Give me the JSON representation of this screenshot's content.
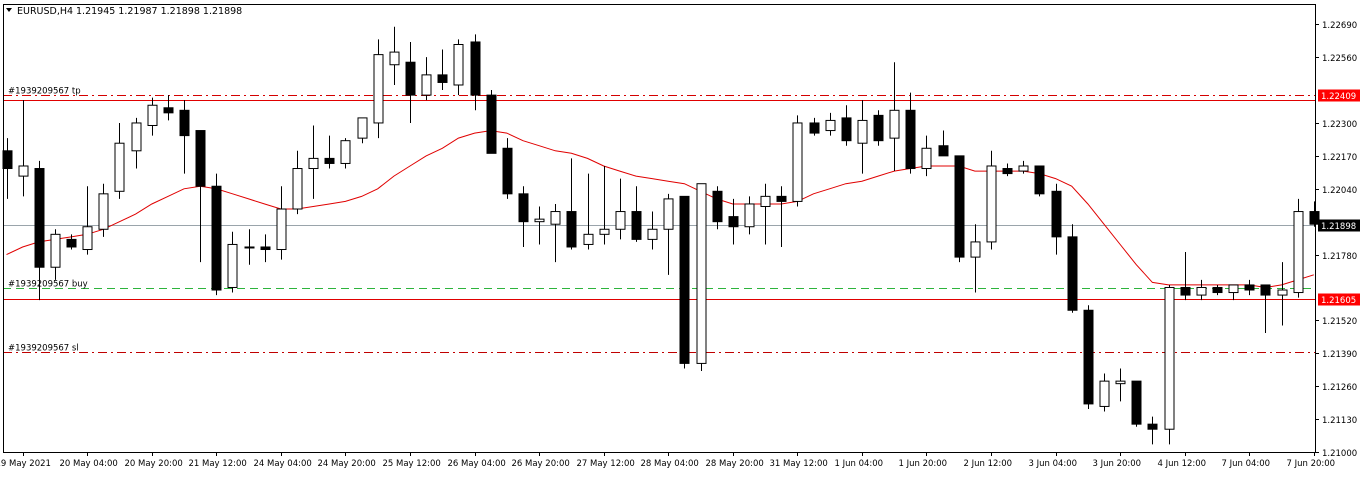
{
  "header": {
    "symbol_timeframe": "EURUSD,H4",
    "ohlc_text": "1.21945 1.21987 1.21898 1.21898"
  },
  "colors": {
    "background": "#ffffff",
    "text": "#000000",
    "bear_body": "#000000",
    "bull_body": "#ffffff",
    "ma_line": "#e00000",
    "bid_line": "#9aa4ab",
    "tp_line": "#d40000",
    "buy_line": "#2db43c",
    "sl_line": "#c00000",
    "sr_line": "#e00000",
    "label_bg": "#ff0000",
    "label_text": "#ffffff",
    "current_label_bg": "#000000"
  },
  "chart_data": {
    "type": "candlestick",
    "symbol": "EURUSD",
    "timeframe": "H4",
    "ylim": [
      1.21,
      1.2277
    ],
    "y_ticks": [
      "1.22690",
      "1.22560",
      "1.22300",
      "1.22170",
      "1.22040",
      "1.21780",
      "1.21520",
      "1.21390",
      "1.21260",
      "1.21130",
      "1.21000"
    ],
    "y_tick_values": [
      1.2269,
      1.2256,
      1.223,
      1.2217,
      1.2204,
      1.2178,
      1.2152,
      1.2139,
      1.2126,
      1.2113,
      1.21
    ],
    "x_ticks": [
      {
        "label": "19 May 2021",
        "index": 1
      },
      {
        "label": "20 May 04:00",
        "index": 5
      },
      {
        "label": "20 May 20:00",
        "index": 9
      },
      {
        "label": "21 May 12:00",
        "index": 13
      },
      {
        "label": "24 May 04:00",
        "index": 17
      },
      {
        "label": "24 May 20:00",
        "index": 21
      },
      {
        "label": "25 May 12:00",
        "index": 25
      },
      {
        "label": "26 May 04:00",
        "index": 29
      },
      {
        "label": "26 May 20:00",
        "index": 33
      },
      {
        "label": "27 May 12:00",
        "index": 37
      },
      {
        "label": "28 May 04:00",
        "index": 41
      },
      {
        "label": "28 May 20:00",
        "index": 45
      },
      {
        "label": "31 May 12:00",
        "index": 49
      },
      {
        "label": "1 Jun 04:00",
        "index": 53
      },
      {
        "label": "1 Jun 20:00",
        "index": 57
      },
      {
        "label": "2 Jun 12:00",
        "index": 61
      },
      {
        "label": "3 Jun 04:00",
        "index": 65
      },
      {
        "label": "3 Jun 20:00",
        "index": 69
      },
      {
        "label": "4 Jun 12:00",
        "index": 73
      },
      {
        "label": "7 Jun 04:00",
        "index": 77
      },
      {
        "label": "7 Jun 20:00",
        "index": 81
      }
    ],
    "candles": [
      {
        "o": 1.2219,
        "h": 1.2224,
        "l": 1.22,
        "c": 1.2212
      },
      {
        "o": 1.2209,
        "h": 1.2239,
        "l": 1.2201,
        "c": 1.2213
      },
      {
        "o": 1.2212,
        "h": 1.2215,
        "l": 1.216,
        "c": 1.2173
      },
      {
        "o": 1.2173,
        "h": 1.2188,
        "l": 1.2168,
        "c": 1.2186
      },
      {
        "o": 1.2184,
        "h": 1.2186,
        "l": 1.218,
        "c": 1.2181
      },
      {
        "o": 1.218,
        "h": 1.2205,
        "l": 1.2178,
        "c": 1.2189
      },
      {
        "o": 1.2188,
        "h": 1.2206,
        "l": 1.2185,
        "c": 1.2202
      },
      {
        "o": 1.2203,
        "h": 1.223,
        "l": 1.22,
        "c": 1.2222
      },
      {
        "o": 1.2219,
        "h": 1.2232,
        "l": 1.2212,
        "c": 1.223
      },
      {
        "o": 1.2229,
        "h": 1.224,
        "l": 1.2225,
        "c": 1.2237
      },
      {
        "o": 1.2236,
        "h": 1.2241,
        "l": 1.2231,
        "c": 1.2234
      },
      {
        "o": 1.2235,
        "h": 1.2239,
        "l": 1.221,
        "c": 1.2225
      },
      {
        "o": 1.2227,
        "h": 1.2226,
        "l": 1.2175,
        "c": 1.2205
      },
      {
        "o": 1.2205,
        "h": 1.221,
        "l": 1.2162,
        "c": 1.2164
      },
      {
        "o": 1.2165,
        "h": 1.2187,
        "l": 1.2163,
        "c": 1.2182
      },
      {
        "o": 1.2181,
        "h": 1.2188,
        "l": 1.2174,
        "c": 1.2181
      },
      {
        "o": 1.2181,
        "h": 1.2186,
        "l": 1.2175,
        "c": 1.218
      },
      {
        "o": 1.218,
        "h": 1.2205,
        "l": 1.2176,
        "c": 1.2196
      },
      {
        "o": 1.2196,
        "h": 1.2219,
        "l": 1.2194,
        "c": 1.2212
      },
      {
        "o": 1.2212,
        "h": 1.2229,
        "l": 1.22,
        "c": 1.2216
      },
      {
        "o": 1.2216,
        "h": 1.2225,
        "l": 1.2212,
        "c": 1.2214
      },
      {
        "o": 1.2214,
        "h": 1.2224,
        "l": 1.2212,
        "c": 1.2223
      },
      {
        "o": 1.2224,
        "h": 1.2232,
        "l": 1.2222,
        "c": 1.2232
      },
      {
        "o": 1.223,
        "h": 1.2263,
        "l": 1.2224,
        "c": 1.2257
      },
      {
        "o": 1.2253,
        "h": 1.2268,
        "l": 1.2245,
        "c": 1.2258
      },
      {
        "o": 1.2254,
        "h": 1.2262,
        "l": 1.223,
        "c": 1.2241
      },
      {
        "o": 1.2241,
        "h": 1.2256,
        "l": 1.2239,
        "c": 1.2249
      },
      {
        "o": 1.2249,
        "h": 1.2259,
        "l": 1.2243,
        "c": 1.2246
      },
      {
        "o": 1.2245,
        "h": 1.2263,
        "l": 1.2241,
        "c": 1.2261
      },
      {
        "o": 1.2262,
        "h": 1.2265,
        "l": 1.2235,
        "c": 1.2241
      },
      {
        "o": 1.2241,
        "h": 1.2243,
        "l": 1.2218,
        "c": 1.2218
      },
      {
        "o": 1.222,
        "h": 1.2224,
        "l": 1.22,
        "c": 1.2202
      },
      {
        "o": 1.2202,
        "h": 1.2205,
        "l": 1.2181,
        "c": 1.2191
      },
      {
        "o": 1.2191,
        "h": 1.2197,
        "l": 1.2182,
        "c": 1.2192
      },
      {
        "o": 1.219,
        "h": 1.2198,
        "l": 1.2175,
        "c": 1.2195
      },
      {
        "o": 1.2195,
        "h": 1.2216,
        "l": 1.218,
        "c": 1.2181
      },
      {
        "o": 1.2182,
        "h": 1.221,
        "l": 1.218,
        "c": 1.2186
      },
      {
        "o": 1.2186,
        "h": 1.2213,
        "l": 1.2182,
        "c": 1.2188
      },
      {
        "o": 1.2188,
        "h": 1.2208,
        "l": 1.2184,
        "c": 1.2195
      },
      {
        "o": 1.2195,
        "h": 1.2205,
        "l": 1.2183,
        "c": 1.2184
      },
      {
        "o": 1.2184,
        "h": 1.2195,
        "l": 1.218,
        "c": 1.2188
      },
      {
        "o": 1.2188,
        "h": 1.2202,
        "l": 1.217,
        "c": 1.22
      },
      {
        "o": 1.2201,
        "h": 1.22,
        "l": 1.2133,
        "c": 1.2135
      },
      {
        "o": 1.2135,
        "h": 1.2206,
        "l": 1.2132,
        "c": 1.2206
      },
      {
        "o": 1.2203,
        "h": 1.2205,
        "l": 1.2188,
        "c": 1.2191
      },
      {
        "o": 1.2193,
        "h": 1.22,
        "l": 1.2182,
        "c": 1.2189
      },
      {
        "o": 1.2189,
        "h": 1.2201,
        "l": 1.2186,
        "c": 1.2198
      },
      {
        "o": 1.2197,
        "h": 1.2206,
        "l": 1.2182,
        "c": 1.2201
      },
      {
        "o": 1.2201,
        "h": 1.2205,
        "l": 1.2181,
        "c": 1.2199
      },
      {
        "o": 1.2199,
        "h": 1.2233,
        "l": 1.2197,
        "c": 1.223
      },
      {
        "o": 1.223,
        "h": 1.2232,
        "l": 1.2225,
        "c": 1.2226
      },
      {
        "o": 1.2227,
        "h": 1.2234,
        "l": 1.2225,
        "c": 1.2231
      },
      {
        "o": 1.2232,
        "h": 1.2237,
        "l": 1.2221,
        "c": 1.2223
      },
      {
        "o": 1.2222,
        "h": 1.2239,
        "l": 1.221,
        "c": 1.2231
      },
      {
        "o": 1.2233,
        "h": 1.2235,
        "l": 1.2221,
        "c": 1.2223
      },
      {
        "o": 1.2224,
        "h": 1.2254,
        "l": 1.2211,
        "c": 1.2235
      },
      {
        "o": 1.2235,
        "h": 1.2242,
        "l": 1.221,
        "c": 1.2212
      },
      {
        "o": 1.2212,
        "h": 1.2225,
        "l": 1.2209,
        "c": 1.222
      },
      {
        "o": 1.2221,
        "h": 1.2227,
        "l": 1.2217,
        "c": 1.2217
      },
      {
        "o": 1.2217,
        "h": 1.2217,
        "l": 1.2175,
        "c": 1.2177
      },
      {
        "o": 1.2177,
        "h": 1.219,
        "l": 1.2163,
        "c": 1.2183
      },
      {
        "o": 1.2183,
        "h": 1.2219,
        "l": 1.218,
        "c": 1.2213
      },
      {
        "o": 1.2212,
        "h": 1.2214,
        "l": 1.2209,
        "c": 1.221
      },
      {
        "o": 1.2211,
        "h": 1.2215,
        "l": 1.221,
        "c": 1.2213
      },
      {
        "o": 1.2213,
        "h": 1.2213,
        "l": 1.2201,
        "c": 1.2202
      },
      {
        "o": 1.2203,
        "h": 1.2206,
        "l": 1.2178,
        "c": 1.2185
      },
      {
        "o": 1.2185,
        "h": 1.219,
        "l": 1.2155,
        "c": 1.2156
      },
      {
        "o": 1.2156,
        "h": 1.2158,
        "l": 1.2117,
        "c": 1.2119
      },
      {
        "o": 1.2118,
        "h": 1.2131,
        "l": 1.2116,
        "c": 1.2128
      },
      {
        "o": 1.2127,
        "h": 1.2133,
        "l": 1.212,
        "c": 1.2128
      },
      {
        "o": 1.2128,
        "h": 1.2128,
        "l": 1.211,
        "c": 1.2111
      },
      {
        "o": 1.2111,
        "h": 1.2114,
        "l": 1.2103,
        "c": 1.2109
      },
      {
        "o": 1.2109,
        "h": 1.2166,
        "l": 1.2103,
        "c": 1.2165
      },
      {
        "o": 1.2165,
        "h": 1.2179,
        "l": 1.216,
        "c": 1.2162
      },
      {
        "o": 1.2162,
        "h": 1.2168,
        "l": 1.216,
        "c": 1.2165
      },
      {
        "o": 1.2165,
        "h": 1.2166,
        "l": 1.2162,
        "c": 1.2163
      },
      {
        "o": 1.2163,
        "h": 1.2166,
        "l": 1.216,
        "c": 1.2166
      },
      {
        "o": 1.2166,
        "h": 1.2168,
        "l": 1.2162,
        "c": 1.2164
      },
      {
        "o": 1.2166,
        "h": 1.2166,
        "l": 1.2147,
        "c": 1.2162
      },
      {
        "o": 1.2162,
        "h": 1.2175,
        "l": 1.215,
        "c": 1.2164
      },
      {
        "o": 1.2163,
        "h": 1.22,
        "l": 1.2161,
        "c": 1.2195
      },
      {
        "o": 1.2195,
        "h": 1.2199,
        "l": 1.2189,
        "c": 1.219
      }
    ],
    "moving_average": [
      1.2178,
      1.2181,
      1.2183,
      1.2184,
      1.2185,
      1.2186,
      1.2188,
      1.2191,
      1.2194,
      1.2198,
      1.2201,
      1.2204,
      1.2205,
      1.2204,
      1.2202,
      1.22,
      1.2198,
      1.2196,
      1.2196,
      1.2197,
      1.2198,
      1.2199,
      1.2201,
      1.2204,
      1.2209,
      1.2213,
      1.2217,
      1.222,
      1.2224,
      1.2226,
      1.2227,
      1.2226,
      1.2223,
      1.2221,
      1.2219,
      1.2218,
      1.2216,
      1.2213,
      1.2211,
      1.2209,
      1.2208,
      1.2207,
      1.2206,
      1.2203,
      1.22,
      1.2198,
      1.2198,
      1.2198,
      1.2198,
      1.2199,
      1.2202,
      1.2204,
      1.2206,
      1.2207,
      1.2209,
      1.2211,
      1.2212,
      1.2213,
      1.2213,
      1.2213,
      1.2211,
      1.2211,
      1.2211,
      1.2211,
      1.221,
      1.2208,
      1.2205,
      1.2198,
      1.219,
      1.2182,
      1.2174,
      1.2167,
      1.2166,
      1.2166,
      1.2166,
      1.2166,
      1.2166,
      1.2166,
      1.2165,
      1.2166,
      1.2168,
      1.217
    ],
    "horizontal_lines": [
      {
        "name": "tp",
        "label": "#1939209567 tp",
        "price": 1.22409,
        "style": "dashdot",
        "color": "#d40000",
        "price_label": "1.22409"
      },
      {
        "name": "sr-top",
        "label": "",
        "price": 1.2239,
        "style": "solid",
        "color": "#e00000",
        "price_label": ""
      },
      {
        "name": "buy",
        "label": "#1939209567 buy",
        "price": 1.21646,
        "style": "dashed",
        "color": "#2db43c",
        "price_label": ""
      },
      {
        "name": "sr-bottom",
        "label": "",
        "price": 1.21605,
        "style": "solid",
        "color": "#e00000",
        "price_label": "1.21605"
      },
      {
        "name": "sl",
        "label": "#1939209567 sl",
        "price": 1.21395,
        "style": "dashdot",
        "color": "#c00000",
        "price_label": ""
      },
      {
        "name": "bid",
        "label": "",
        "price": 1.21898,
        "style": "solid",
        "color": "#9aa4ab",
        "price_label": "1.21898"
      }
    ]
  }
}
